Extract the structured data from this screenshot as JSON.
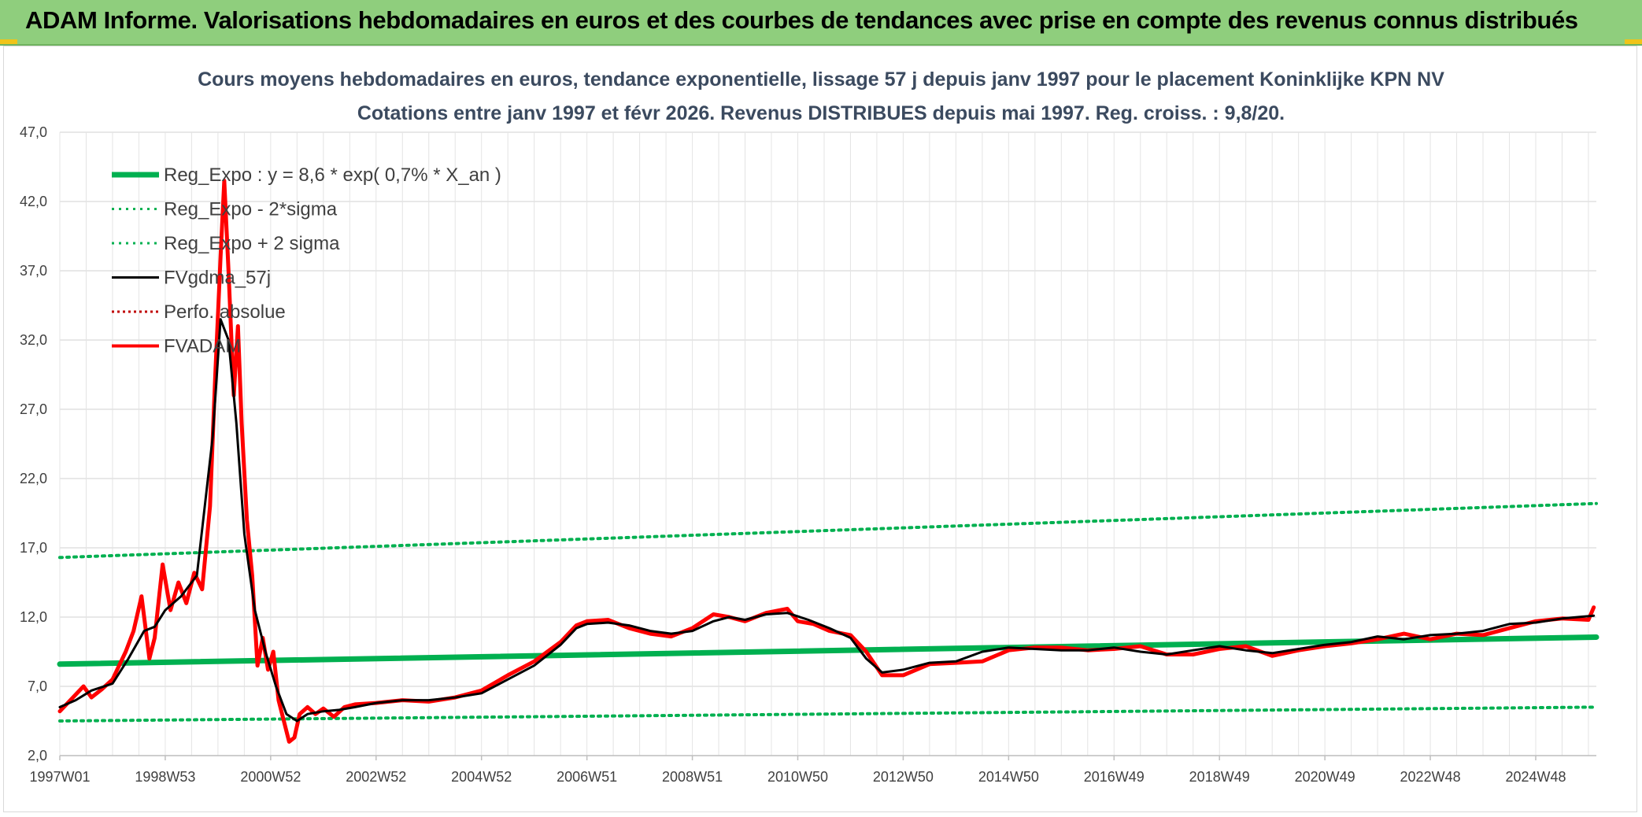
{
  "header": {
    "title": "ADAM Informe. Valorisations hebdomadaires en euros et des courbes de tendances avec prise en compte des revenus connus distribués"
  },
  "colors": {
    "banner": "#8fce7d",
    "reg_expo": "#00b050",
    "fvgdma": "#000000",
    "perfo": "#c00000",
    "fvadam": "#ff0000",
    "grid": "#d9d9d9"
  },
  "chart_data": {
    "type": "line",
    "title": "Cours moyens hebdomadaires en euros, tendance exponentielle, lissage 57 j depuis janv 1997 pour le placement Koninklijke KPN NV",
    "subtitle": "Cotations entre janv 1997 et févr 2026. Revenus DISTRIBUES depuis mai 1997. Reg. croiss. : 9,8/20.",
    "xlabel": "",
    "ylabel": "",
    "ylim": [
      2.0,
      47.0
    ],
    "xlim": [
      1997.0,
      2026.15
    ],
    "yticks": [
      "2,0",
      "7,0",
      "12,0",
      "17,0",
      "22,0",
      "27,0",
      "32,0",
      "37,0",
      "42,0",
      "47,0"
    ],
    "ytick_values": [
      2,
      7,
      12,
      17,
      22,
      27,
      32,
      37,
      42,
      47
    ],
    "xticks": [
      "1997W01",
      "1998W53",
      "2000W52",
      "2002W52",
      "2004W52",
      "2006W51",
      "2008W51",
      "2010W50",
      "2012W50",
      "2014W50",
      "2016W49",
      "2018W49",
      "2020W49",
      "2022W48",
      "2024W48"
    ],
    "xtick_values": [
      1997.0,
      1999.0,
      2001.0,
      2003.0,
      2005.0,
      2007.0,
      2009.0,
      2011.0,
      2013.0,
      2015.0,
      2017.0,
      2019.0,
      2021.0,
      2023.0,
      2025.0
    ],
    "grid": true,
    "legend_position": "top-left",
    "series": [
      {
        "name": "Reg_Expo : y = 8,6 * exp( 0,7% *  X_an )",
        "style": "solid-thick",
        "x": [
          1997.0,
          2026.15
        ],
        "y": [
          8.6,
          10.55
        ]
      },
      {
        "name": "Reg_Expo - 2*sigma",
        "style": "dotted",
        "x": [
          1997.0,
          2026.15
        ],
        "y": [
          4.5,
          5.5
        ]
      },
      {
        "name": "Reg_Expo + 2 sigma",
        "style": "dotted",
        "x": [
          1997.0,
          2026.15
        ],
        "y": [
          16.3,
          20.2
        ]
      },
      {
        "name": "FVgdma_57j",
        "style": "solid",
        "x": [
          1997.0,
          1997.3,
          1997.6,
          1998.0,
          1998.3,
          1998.6,
          1998.8,
          1999.0,
          1999.3,
          1999.6,
          1999.9,
          2000.05,
          2000.2,
          2000.35,
          2000.5,
          2000.7,
          2000.9,
          2001.1,
          2001.3,
          2001.5,
          2001.7,
          2002.0,
          2002.3,
          2002.6,
          2003.0,
          2003.5,
          2004.0,
          2004.5,
          2005.0,
          2005.5,
          2006.0,
          2006.5,
          2006.8,
          2007.0,
          2007.4,
          2007.8,
          2008.2,
          2008.6,
          2009.0,
          2009.4,
          2009.7,
          2010.0,
          2010.4,
          2010.8,
          2011.2,
          2011.6,
          2012.0,
          2012.3,
          2012.6,
          2013.0,
          2013.5,
          2014.0,
          2014.5,
          2015.0,
          2015.5,
          2016.0,
          2016.5,
          2017.0,
          2017.5,
          2018.0,
          2018.5,
          2019.0,
          2019.5,
          2020.0,
          2020.5,
          2021.0,
          2021.5,
          2022.0,
          2022.5,
          2023.0,
          2023.5,
          2024.0,
          2024.5,
          2025.0,
          2025.5,
          2026.1
        ],
        "y": [
          5.5,
          6.0,
          6.7,
          7.2,
          9.0,
          11.0,
          11.3,
          12.5,
          13.5,
          15.0,
          25.0,
          33.5,
          32.0,
          26.0,
          18.0,
          12.5,
          9.5,
          7.0,
          5.0,
          4.5,
          5.0,
          5.2,
          5.3,
          5.5,
          5.8,
          6.0,
          6.0,
          6.2,
          6.5,
          7.5,
          8.5,
          10.0,
          11.2,
          11.5,
          11.6,
          11.4,
          11.0,
          10.8,
          11.0,
          11.7,
          12.0,
          11.8,
          12.2,
          12.3,
          11.8,
          11.2,
          10.5,
          9.0,
          8.0,
          8.2,
          8.7,
          8.8,
          9.5,
          9.8,
          9.7,
          9.6,
          9.6,
          9.8,
          9.5,
          9.3,
          9.6,
          9.9,
          9.6,
          9.4,
          9.7,
          10.0,
          10.2,
          10.6,
          10.4,
          10.7,
          10.8,
          11.0,
          11.5,
          11.6,
          11.9,
          12.1
        ]
      },
      {
        "name": "Perfo. absolue",
        "style": "dotted",
        "x": [],
        "y": []
      },
      {
        "name": "FVADAM",
        "style": "solid-thick",
        "x": [
          1997.0,
          1997.2,
          1997.45,
          1997.6,
          1997.8,
          1998.0,
          1998.25,
          1998.4,
          1998.55,
          1998.7,
          1998.8,
          1998.95,
          1999.1,
          1999.25,
          1999.4,
          1999.55,
          1999.7,
          1999.85,
          1999.95,
          2000.05,
          2000.12,
          2000.2,
          2000.3,
          2000.38,
          2000.45,
          2000.55,
          2000.65,
          2000.75,
          2000.85,
          2000.95,
          2001.05,
          2001.15,
          2001.25,
          2001.35,
          2001.45,
          2001.55,
          2001.7,
          2001.85,
          2002.0,
          2002.2,
          2002.4,
          2002.6,
          2003.0,
          2003.5,
          2004.0,
          2004.5,
          2005.0,
          2005.5,
          2006.0,
          2006.5,
          2006.8,
          2007.0,
          2007.4,
          2007.8,
          2008.2,
          2008.6,
          2009.0,
          2009.4,
          2009.7,
          2010.0,
          2010.4,
          2010.8,
          2011.0,
          2011.3,
          2011.6,
          2012.0,
          2012.3,
          2012.6,
          2013.0,
          2013.5,
          2014.0,
          2014.5,
          2015.0,
          2015.5,
          2016.0,
          2016.5,
          2017.0,
          2017.5,
          2018.0,
          2018.5,
          2019.0,
          2019.5,
          2020.0,
          2020.5,
          2021.0,
          2021.5,
          2022.0,
          2022.5,
          2023.0,
          2023.5,
          2024.0,
          2024.5,
          2025.0,
          2025.5,
          2026.0,
          2026.1
        ],
        "y": [
          5.2,
          6.0,
          7.0,
          6.2,
          6.8,
          7.5,
          9.5,
          11.0,
          13.5,
          9.0,
          10.5,
          15.8,
          12.5,
          14.5,
          13.0,
          15.2,
          14.0,
          20.0,
          29.5,
          38.0,
          43.5,
          37.0,
          28.0,
          33.0,
          26.0,
          19.0,
          15.0,
          8.5,
          10.5,
          8.2,
          9.5,
          6.0,
          4.5,
          3.0,
          3.3,
          5.0,
          5.5,
          5.0,
          5.4,
          4.8,
          5.5,
          5.7,
          5.8,
          6.0,
          5.9,
          6.2,
          6.7,
          7.8,
          8.8,
          10.2,
          11.4,
          11.7,
          11.8,
          11.2,
          10.8,
          10.6,
          11.2,
          12.2,
          12.0,
          11.7,
          12.3,
          12.6,
          11.7,
          11.5,
          11.0,
          10.7,
          9.5,
          7.8,
          7.8,
          8.6,
          8.7,
          8.8,
          9.6,
          9.8,
          9.8,
          9.6,
          9.7,
          9.9,
          9.3,
          9.3,
          9.7,
          9.9,
          9.2,
          9.6,
          9.9,
          10.1,
          10.4,
          10.8,
          10.4,
          10.8,
          10.7,
          11.2,
          11.7,
          11.9,
          11.8,
          12.7
        ]
      }
    ]
  }
}
